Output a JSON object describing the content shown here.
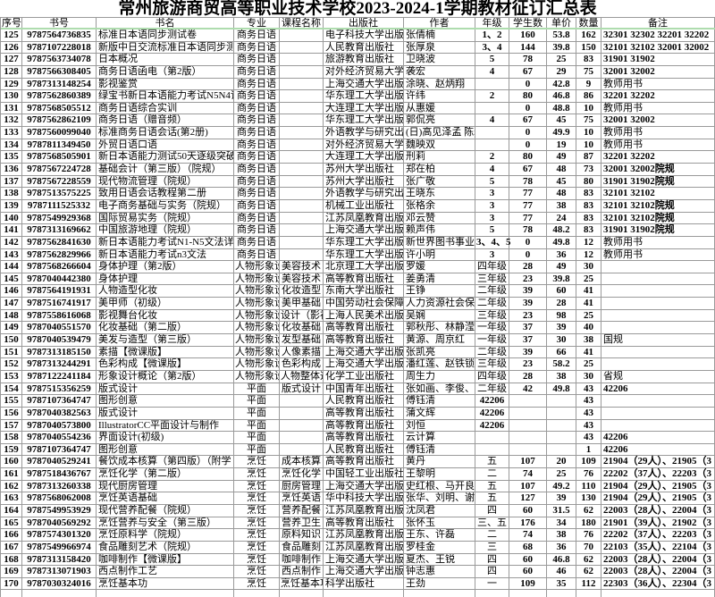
{
  "title": "常州旅游商贸高等职业技术学校2023-2024-1学期教材征订汇总表",
  "colors": {
    "grid_line": "#9a9a9a",
    "header_underline": "#aedcae",
    "text": "#000000",
    "background": "#ffffff"
  },
  "table": {
    "columns": [
      {
        "key": "index",
        "label": "序号"
      },
      {
        "key": "isbn",
        "label": "书号"
      },
      {
        "key": "book-title",
        "label": "书名"
      },
      {
        "key": "major",
        "label": "专业"
      },
      {
        "key": "course-name",
        "label": "课程名称"
      },
      {
        "key": "publisher",
        "label": "出版社"
      },
      {
        "key": "author",
        "label": "作者"
      },
      {
        "key": "grade",
        "label": "年级"
      },
      {
        "key": "student-count",
        "label": "学生数"
      },
      {
        "key": "unit-price",
        "label": "单价"
      },
      {
        "key": "quantity",
        "label": "数量"
      },
      {
        "key": "remarks",
        "label": "备注"
      }
    ],
    "rows": [
      [
        "125",
        "9787564736835",
        "标准日本语同步测试卷",
        "商务日语",
        "",
        "电子科技大学出版社",
        "张倩楠",
        "1、2",
        "160",
        "53.8",
        "162",
        "32301 32302 32201 32202"
      ],
      [
        "126",
        "9787107228018",
        "新版中日交流标准日本语同步测",
        "商务日语",
        "",
        "人民教育出版社",
        "张厚泉",
        "3、4",
        "144",
        "39.8",
        "150",
        "32101 32102 32001 32002"
      ],
      [
        "127",
        "9787563734078",
        "日本概况",
        "商务日语",
        "",
        "旅游教育出版社",
        "卫晓波",
        "5",
        "78",
        "25",
        "83",
        "31901 31902"
      ],
      [
        "128",
        "9787566308405",
        "商务日语函电（第2版）",
        "商务日语",
        "",
        "对外经济贸易大学出版社",
        "袭宏",
        "4",
        "67",
        "29",
        "75",
        "32001 32002"
      ],
      [
        "129",
        "9787313148254",
        "影视鉴赏",
        "商务日语",
        "",
        "上海交通大学出版社",
        "涂晓、赵炳翔",
        "",
        "0",
        "42.8",
        "9",
        "教师用书"
      ],
      [
        "130",
        "9787562860389",
        "绿宝书新日本语能力考试N5N4词",
        "商务日语",
        "",
        "华东理工大学出版社",
        "许纬",
        "2",
        "80",
        "46.8",
        "86",
        "32201 32202"
      ],
      [
        "131",
        "9787568505512",
        "商务日语综合实训",
        "商务日语",
        "",
        "大连理工大学出版社",
        "从惠媛",
        "",
        "0",
        "48.8",
        "10",
        "教师用书"
      ],
      [
        "132",
        "9787562862109",
        "商务日语（赠音频）",
        "商务日语",
        "",
        "华东理工大学出版社",
        "郭侃亮",
        "4",
        "67",
        "45",
        "75",
        "32001 32002"
      ],
      [
        "133",
        "9787560099040",
        "标准商务日语会话(第2册)",
        "商务日语",
        "",
        "外语教学与研究出版社",
        "(日)高见泽孟 陈岩",
        "",
        "0",
        "49.9",
        "10",
        "教师用书"
      ],
      [
        "134",
        "9787811349450",
        "外贸日语口语",
        "商务日语",
        "",
        "对外经济贸易大学出版社",
        "魏映双",
        "",
        "0",
        "19",
        "10",
        "教师用书"
      ],
      [
        "135",
        "9787568505901",
        "新日本语能力测试50天逐级突破",
        "商务日语",
        "",
        "大连理工大学出版社",
        "刑莉",
        "2",
        "80",
        "49",
        "87",
        "32201 32202"
      ],
      [
        "136",
        "9787567224728",
        "基础会计（第三版）（院规）",
        "商务日语",
        "",
        "苏州大学出版社",
        "郑在柏",
        "4",
        "67",
        "48",
        "73",
        "32001 32002院规"
      ],
      [
        "137",
        "9787567228559",
        "现代物流管理（院规）",
        "商务日语",
        "",
        "苏州大学出版社",
        "张广敬",
        "5",
        "78",
        "45",
        "80",
        "31901 31902院规"
      ],
      [
        "138",
        "9787513575225",
        "致用日语会话教程第二册",
        "商务日语",
        "",
        "外语教学与研究出版社",
        "王晓东",
        "3",
        "77",
        "48",
        "83",
        "32101 32102"
      ],
      [
        "139",
        "9787111525332",
        "电子商务基础与实务（院规）",
        "商务日语",
        "",
        "机械工业出版社",
        "张格余",
        "3",
        "77",
        "38",
        "83",
        "32101 32102院规"
      ],
      [
        "140",
        "9787549929368",
        "国际贸易实务（院规）",
        "商务日语",
        "",
        "江苏凤凰教育出版社",
        "邓云赞",
        "3",
        "77",
        "24",
        "83",
        "32101 32102院规"
      ],
      [
        "141",
        "9787313169662",
        "中国旅游地理（院规）",
        "商务日语",
        "",
        "上海交通大学出版社",
        "赖声伟",
        "5",
        "78",
        "48.2",
        "83",
        "31901 31902院规"
      ],
      [
        "142",
        "9787562841630",
        "新日本语能力考试N1-N5文法详解",
        "商务日语",
        "",
        "华东理工大学出版社",
        "新世界图书事业",
        "3、4、5",
        "0",
        "49.8",
        "12",
        "教师用书"
      ],
      [
        "143",
        "9787562829966",
        "新日本语能力考试n3文法",
        "商务日语",
        "",
        "华东理工大学出版社",
        "许小明",
        "3",
        "0",
        "36",
        "12",
        "教师用书"
      ],
      [
        "144",
        "9787568266604",
        "身体护理（第2版）",
        "人物形象设计",
        "美容技术",
        "北京理工大学出版社",
        "罗媛",
        "四年级",
        "28",
        "49",
        "30",
        ""
      ],
      [
        "145",
        "9787040442380",
        "身体护理",
        "人物形象设计",
        "美容技术",
        "高等教育出版社",
        "姜勇清",
        "三年级",
        "23",
        "39.8",
        "25",
        ""
      ],
      [
        "146",
        "9787564191931",
        "人物造型化妆",
        "人物形象设计",
        "化妆造型",
        "东南大学出版社",
        "王铮",
        "二年级",
        "39",
        "60",
        "41",
        ""
      ],
      [
        "147",
        "9787516741917",
        "美甲师（初级）",
        "人物形象设计",
        "美甲基础",
        "中国劳动社会保障出版社",
        "人力资源社会保障",
        "二年级",
        "39",
        "28",
        "41",
        ""
      ],
      [
        "148",
        "9787558616068",
        "影视舞台化妆",
        "人物形象设计",
        "设计（影视）",
        "上海人民美术出版社",
        "吴娴",
        "三年级",
        "23",
        "98",
        "25",
        ""
      ],
      [
        "149",
        "9787040551570",
        "化妆基础（第二版）",
        "人物形象设计",
        "化妆基础",
        "高等教育出版社",
        "郭秋彤、林静滢",
        "一年级",
        "37",
        "39",
        "40",
        ""
      ],
      [
        "150",
        "9787040539479",
        "美发与造型（第三版）",
        "人物形象设计",
        "发型基础",
        "高等教育出版社",
        "黄源、周京红",
        "一年级",
        "37",
        "30",
        "38",
        "国规"
      ],
      [
        "151",
        "9787313185150",
        "素描【微课版】",
        "人物形象设计",
        "人像素描",
        "上海交通大学出版社",
        "张凯亮",
        "二年级",
        "39",
        "66",
        "41",
        ""
      ],
      [
        "152",
        "9787313244291",
        "色彩构成【微课版】",
        "人物形象设计",
        "色彩构成",
        "上海交通大学出版社",
        "潘红莲、赵铁锁",
        "三年级",
        "23",
        "58.2",
        "25",
        ""
      ],
      [
        "153",
        "9787122241184",
        "形象设计概论（第2版）",
        "人物形象设计",
        "人物整体造型",
        "化学工业出版社",
        "周生力",
        "四年级",
        "28",
        "38",
        "30",
        "省规"
      ],
      [
        "154",
        "9787515356259",
        "版式设计",
        "平面",
        "版式设计",
        "中国青年出版社",
        "张如画、李俊、",
        "二年级",
        "42",
        "49.8",
        "43",
        "42206"
      ],
      [
        "155",
        "9787107364747",
        "图形创意",
        "平面",
        "",
        "人民教育出版社",
        "傅钰清",
        "42206",
        "",
        "",
        "43",
        ""
      ],
      [
        "156",
        "9787040382563",
        "版式设计",
        "平面",
        "",
        "高等教育出版社",
        "蒲文辉",
        "42206",
        "",
        "",
        "43",
        ""
      ],
      [
        "157",
        "9787040573800",
        "IllustratorCC平面设计与制作",
        "平面",
        "",
        "高等教育出版社",
        "刘恒",
        "42206",
        "",
        "",
        "43",
        ""
      ],
      [
        "158",
        "9787040554236",
        "界面设计(初级)",
        "平面",
        "",
        "高等教育出版社",
        "云计算",
        "",
        "",
        "",
        "43",
        "42206"
      ],
      [
        "159",
        "9787107364747",
        "图形创意",
        "平面",
        "",
        "人民教育出版社",
        "傅钰清",
        "",
        "",
        "",
        "1",
        "42206"
      ],
      [
        "160",
        "9787040529241",
        "餐饮成本核算（第四版）（附学",
        "烹饪",
        "成本核算",
        "高等教育出版社",
        "黄丹",
        "五",
        "107",
        "20",
        "109",
        "21904（29人）、21905（3"
      ],
      [
        "161",
        "9787518436767",
        "烹饪化学（第二版）",
        "烹饪",
        "烹饪化学",
        "中国轻工业出版社",
        "王黎明",
        "二",
        "74",
        "25",
        "76",
        "22202（37人）、22203（3"
      ],
      [
        "162",
        "9787313260338",
        "现代厨房管理",
        "烹饪",
        "厨房管理",
        "上海交通大学出版社",
        "史红根、马开良",
        "五",
        "107",
        "49.2",
        "110",
        "21904（29人）、21905（3"
      ],
      [
        "163",
        "9787568062008",
        "烹饪英语基础",
        "烹饪",
        "烹饪英语",
        "华中科技大学出版社",
        "张华、刘明、谢",
        "五",
        "127",
        "39",
        "130",
        "21904（29人）、21905（3"
      ],
      [
        "164",
        "9787549953929",
        "现代营养配餐（院规）",
        "烹饪",
        "营养配餐",
        "江苏凤凰教育出版社",
        "沈凤君",
        "四",
        "60",
        "31.5",
        "62",
        "22003（28人）、22004（3"
      ],
      [
        "165",
        "9787040569292",
        "烹饪营养与安全（第三版）",
        "烹饪",
        "营养卫生",
        "高等教育出版社",
        "张怀玉",
        "三、五",
        "176",
        "34",
        "180",
        "21901（39人）、21902（3"
      ],
      [
        "166",
        "9787574301320",
        "烹饪原料学（院规）",
        "烹饪",
        "原料知识",
        "江苏凤凰教育出版社",
        "王东、许磊",
        "二",
        "74",
        "38",
        "76",
        "22202（37人）、22203（3"
      ],
      [
        "167",
        "9787549966974",
        "食品雕刻艺术（院规）",
        "烹饪",
        "食品雕刻",
        "江苏凤凰教育出版社",
        "罗桂金",
        "三",
        "68",
        "36",
        "70",
        "22103（35人）、22104（3"
      ],
      [
        "168",
        "9787313158420",
        "咖啡制作【微课版】",
        "烹饪",
        "咖啡制作",
        "上海交通大学出版社",
        "夏杰、王锐",
        "四",
        "60",
        "46.8",
        "62",
        "22003（28人）、22004（3"
      ],
      [
        "169",
        "9787313071903",
        "西点制作工艺",
        "烹饪",
        "西点制作",
        "上海交通大学出版社",
        "钟志惠",
        "四",
        "60",
        "46",
        "62",
        "22003（28人）、22004（3"
      ],
      [
        "170",
        "9787030324016",
        "烹饪基本功",
        "烹饪",
        "烹饪基本功",
        "科学出版社",
        "王劲",
        "一",
        "109",
        "35",
        "112",
        "22303（36人）、22304（3"
      ]
    ]
  }
}
